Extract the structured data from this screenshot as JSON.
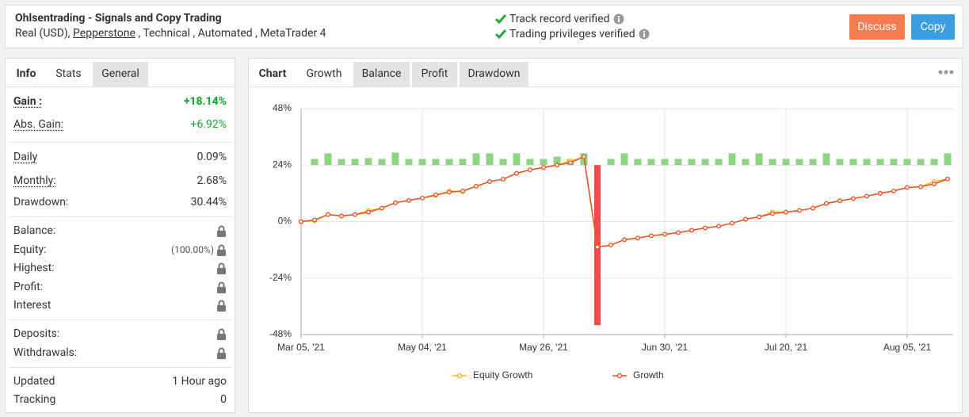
{
  "header": {
    "title": "Ohlsentrading - Signals and Copy Trading",
    "account": "Real (USD),",
    "broker": "Pepperstone",
    "tags": ", Technical , Automated , MetaTrader 4",
    "verified": [
      "Track record verified",
      "Trading privileges verified"
    ],
    "buttons": [
      "Discuss",
      "Copy"
    ]
  },
  "info_tabs": [
    "Info",
    "Stats",
    "General"
  ],
  "stats": {
    "gain": {
      "label": "Gain :",
      "value": "+18.14%"
    },
    "abs_gain": {
      "label": "Abs. Gain:",
      "value": "+6.92%"
    },
    "daily": {
      "label": "Daily",
      "value": "0.09%"
    },
    "monthly": {
      "label": "Monthly:",
      "value": "2.68%"
    },
    "drawdown": {
      "label": "Drawdown:",
      "value": "30.44%"
    },
    "balance": {
      "label": "Balance:"
    },
    "equity": {
      "label": "Equity:",
      "value": "(100.00%)"
    },
    "highest": {
      "label": "Highest:"
    },
    "profit": {
      "label": "Profit:"
    },
    "interest": {
      "label": "Interest"
    },
    "deposits": {
      "label": "Deposits:"
    },
    "withdrawals": {
      "label": "Withdrawals:"
    },
    "updated": {
      "label": "Updated",
      "value": "1 Hour ago"
    },
    "tracking": {
      "label": "Tracking",
      "value": "0"
    }
  },
  "chart_tabs": [
    "Chart",
    "Growth",
    "Balance",
    "Profit",
    "Drawdown"
  ],
  "chart_data": {
    "type": "line",
    "categories": [
      "Mar 05, '21",
      null,
      null,
      null,
      null,
      null,
      null,
      null,
      null,
      "May 04, '21",
      null,
      null,
      null,
      null,
      null,
      null,
      null,
      null,
      "May 26, '21",
      null,
      null,
      null,
      null,
      null,
      null,
      null,
      null,
      "Jun 30, '21",
      null,
      null,
      null,
      null,
      null,
      null,
      null,
      null,
      "Jul 20, '21",
      null,
      null,
      null,
      null,
      null,
      null,
      null,
      null,
      "Aug 05, '21",
      null,
      null,
      null
    ],
    "series": [
      {
        "name": "Equity Growth",
        "color": "#f7b91e",
        "values": [
          0,
          0.3,
          3,
          2.4,
          3,
          4.7,
          5.7,
          8,
          9,
          10,
          11,
          13,
          12.7,
          15,
          17,
          18,
          20.5,
          22,
          23,
          24,
          25.8,
          27.3,
          -10.8,
          -10,
          -7.7,
          -7,
          -6,
          -5.4,
          -4.7,
          -3.7,
          -2.7,
          -2,
          -0.7,
          1,
          2,
          4.1,
          4,
          4.7,
          5.7,
          7.7,
          8.8,
          9.8,
          10.8,
          12,
          13,
          14.5,
          14.8,
          17,
          18.1
        ]
      },
      {
        "name": "Growth",
        "color": "#e8502a",
        "values": [
          0,
          0.7,
          3,
          2.4,
          3,
          4,
          5.7,
          8,
          9,
          10,
          11.4,
          12.5,
          13,
          15,
          17,
          18,
          20.5,
          22,
          23,
          24,
          25,
          27.6,
          -10.8,
          -10,
          -7.7,
          -7,
          -6,
          -5.4,
          -4.7,
          -3.7,
          -2.7,
          -2,
          -0.7,
          1,
          2,
          3.4,
          4,
          4.7,
          5.7,
          7.7,
          8.8,
          9.8,
          10.8,
          12,
          13,
          14.5,
          14.8,
          16,
          18.1
        ]
      }
    ],
    "bars": {
      "base": 24,
      "color": "#8fd485",
      "down_color": "#f04a4a",
      "values": [
        null,
        26.6,
        29,
        26.6,
        26.6,
        27,
        26.6,
        29.3,
        26.6,
        26.6,
        26.6,
        26.6,
        26.6,
        29,
        29,
        26.6,
        29,
        26.6,
        26.6,
        27.6,
        26.6,
        29,
        -44,
        26.6,
        29,
        26.6,
        26.6,
        26.6,
        26.6,
        26.6,
        26.6,
        26.6,
        29,
        26.6,
        29,
        26.6,
        26.6,
        26.6,
        26.6,
        29,
        26.6,
        26.6,
        26.6,
        26.6,
        26.6,
        26.6,
        26.6,
        26.6,
        29
      ]
    },
    "ylim": [
      -48,
      48
    ],
    "yticks": [
      {
        "value": -48,
        "label": "-48%"
      },
      {
        "value": -24,
        "label": "-24%"
      },
      {
        "value": 0,
        "label": "0%"
      },
      {
        "value": 24,
        "label": "24%"
      },
      {
        "value": 48,
        "label": "48%"
      }
    ],
    "grid": true
  }
}
